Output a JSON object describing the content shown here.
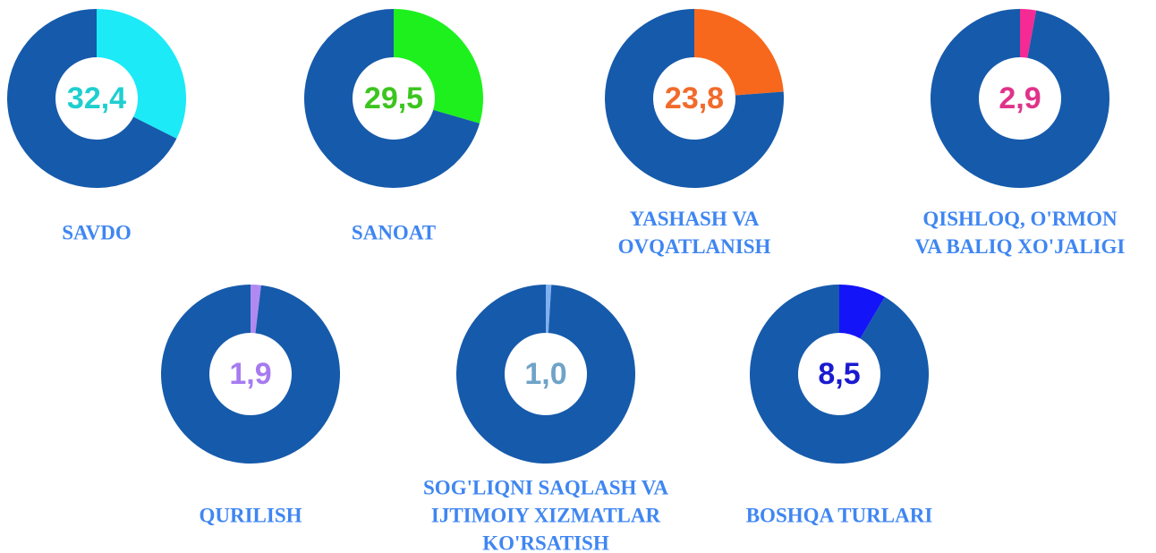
{
  "chart_data": [
    {
      "type": "donut",
      "title": [
        "SAVDO"
      ],
      "values": [
        32.4,
        67.6
      ],
      "value_labels": [
        "32,4",
        null
      ],
      "colors": [
        "#1ceaf7",
        "#165aab"
      ],
      "label_color": "#1fcfcf"
    },
    {
      "type": "donut",
      "title": [
        "SANOAT"
      ],
      "values": [
        29.5,
        70.5
      ],
      "value_labels": [
        "29,5",
        null
      ],
      "colors": [
        "#1ef01e",
        "#165aab"
      ],
      "label_color": "#3cc51e"
    },
    {
      "type": "donut",
      "title": [
        "YASHASH VA",
        "OVQATLANISH"
      ],
      "values": [
        23.8,
        76.2
      ],
      "value_labels": [
        "23,8",
        null
      ],
      "colors": [
        "#f7681c",
        "#165aab"
      ],
      "label_color": "#f26a2b"
    },
    {
      "type": "donut",
      "title": [
        "QISHLOQ, O'RMON",
        "VA BALIQ XO'JALIGI"
      ],
      "values": [
        2.9,
        97.1
      ],
      "value_labels": [
        "2,9",
        null
      ],
      "colors": [
        "#f52a94",
        "#165aab"
      ],
      "label_color": "#e0338a"
    },
    {
      "type": "donut",
      "title": [
        "QURILISH"
      ],
      "values": [
        1.9,
        98.1
      ],
      "value_labels": [
        "1,9",
        null
      ],
      "colors": [
        "#b08af0",
        "#165aab"
      ],
      "label_color": "#a77bf0"
    },
    {
      "type": "donut",
      "title": [
        "SOG'LIQNI SAQLASH VA",
        "IJTIMOIY XIZMATLAR",
        "KO'RSATISH"
      ],
      "values": [
        1.0,
        99.0
      ],
      "value_labels": [
        "1,0",
        null
      ],
      "colors": [
        "#7fb0f0",
        "#165aab"
      ],
      "label_color": "#6fa3c8"
    },
    {
      "type": "donut",
      "title": [
        "BOSHQA TURLARI"
      ],
      "values": [
        8.5,
        91.5
      ],
      "value_labels": [
        "8,5",
        null
      ],
      "colors": [
        "#1414f8",
        "#165aab"
      ],
      "label_color": "#1a1ad0"
    }
  ]
}
